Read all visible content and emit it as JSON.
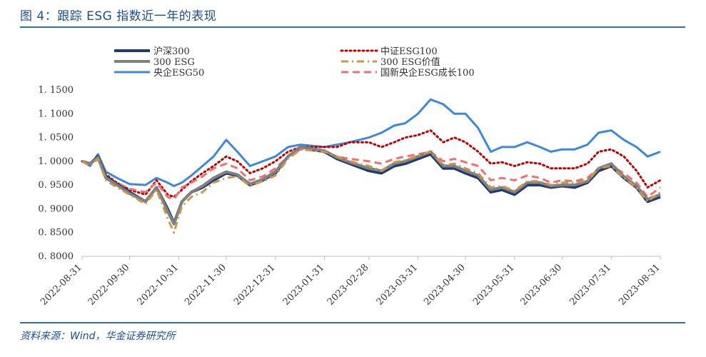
{
  "header": {
    "title": "图 4：跟踪 ESG 指数近一年的表现"
  },
  "footer": {
    "source": "资料来源：Wind，华金证券研究所"
  },
  "colors": {
    "hs300": "#1f3b73",
    "esg100": "#c00000",
    "esg300": "#808080",
    "esg300value": "#c9974a",
    "soe50": "#3d87dc",
    "soe_growth100": "#f07070"
  },
  "chart_data": {
    "type": "line",
    "title": "",
    "xlabel": "",
    "ylabel": "",
    "ylim": [
      0.8,
      1.15
    ],
    "yticks": [
      "1. 1500",
      "1. 1000",
      "1. 0500",
      "1. 0000",
      "0. 9500",
      "0. 9000",
      "0. 8500",
      "0. 8000"
    ],
    "ytick_values": [
      1.15,
      1.1,
      1.05,
      1.0,
      0.95,
      0.9,
      0.85,
      0.8
    ],
    "xticks": [
      "2022-08-31",
      "2022-09-30",
      "2022-10-31",
      "2022-11-30",
      "2022-12-31",
      "2023-01-31",
      "2023-02-28",
      "2023-03-31",
      "2023-04-30",
      "2023-05-31",
      "2023-06-30",
      "2023-07-31",
      "2023-08-31"
    ],
    "legend_position": "top",
    "grid": false,
    "x": [
      "2022-08-31",
      "2022-09-05",
      "2022-09-10",
      "2022-09-15",
      "2022-09-22",
      "2022-09-30",
      "2022-10-10",
      "2022-10-17",
      "2022-10-24",
      "2022-10-28",
      "2022-11-02",
      "2022-11-08",
      "2022-11-15",
      "2022-11-22",
      "2022-11-30",
      "2022-12-07",
      "2022-12-15",
      "2022-12-23",
      "2022-12-31",
      "2023-01-08",
      "2023-01-16",
      "2023-01-31",
      "2023-02-08",
      "2023-02-16",
      "2023-02-28",
      "2023-03-08",
      "2023-03-16",
      "2023-03-23",
      "2023-03-31",
      "2023-04-08",
      "2023-04-16",
      "2023-04-23",
      "2023-04-30",
      "2023-05-08",
      "2023-05-16",
      "2023-05-23",
      "2023-05-31",
      "2023-06-08",
      "2023-06-16",
      "2023-06-23",
      "2023-06-30",
      "2023-07-08",
      "2023-07-16",
      "2023-07-23",
      "2023-07-31",
      "2023-08-08",
      "2023-08-16",
      "2023-08-23",
      "2023-08-31"
    ],
    "series": [
      {
        "name": "沪深300",
        "key": "hs300",
        "style": "solid",
        "width": 4,
        "values": [
          1.0,
          0.995,
          1.01,
          0.968,
          0.952,
          0.935,
          0.915,
          0.945,
          0.9,
          0.87,
          0.915,
          0.935,
          0.945,
          0.96,
          0.975,
          0.97,
          0.95,
          0.96,
          0.975,
          1.01,
          1.03,
          1.02,
          1.005,
          0.995,
          0.98,
          0.975,
          0.99,
          0.995,
          1.005,
          1.015,
          0.985,
          0.985,
          0.975,
          0.965,
          0.935,
          0.94,
          0.93,
          0.95,
          0.95,
          0.945,
          0.948,
          0.945,
          0.955,
          0.98,
          0.99,
          0.965,
          0.945,
          0.915,
          0.925
        ]
      },
      {
        "name": "中证ESG100",
        "key": "esg100",
        "style": "dotted",
        "width": 3,
        "values": [
          1.0,
          0.995,
          1.012,
          0.972,
          0.955,
          0.94,
          0.93,
          0.96,
          0.93,
          0.925,
          0.94,
          0.958,
          0.975,
          0.99,
          1.01,
          1.0,
          0.975,
          0.985,
          1.0,
          1.02,
          1.03,
          1.03,
          1.03,
          1.04,
          1.04,
          1.03,
          1.04,
          1.05,
          1.055,
          1.065,
          1.04,
          1.05,
          1.04,
          1.02,
          0.995,
          0.998,
          0.99,
          0.998,
          0.995,
          0.985,
          0.985,
          0.985,
          0.995,
          1.02,
          1.025,
          1.01,
          0.98,
          0.945,
          0.96
        ]
      },
      {
        "name": "300 ESG",
        "key": "esg300",
        "style": "solid",
        "width": 4,
        "values": [
          1.0,
          0.995,
          1.008,
          0.965,
          0.95,
          0.932,
          0.915,
          0.945,
          0.895,
          0.868,
          0.915,
          0.935,
          0.948,
          0.965,
          0.978,
          0.972,
          0.952,
          0.962,
          0.978,
          1.01,
          1.03,
          1.022,
          1.008,
          0.998,
          0.985,
          0.98,
          0.995,
          1.0,
          1.01,
          1.02,
          0.99,
          0.99,
          0.98,
          0.97,
          0.94,
          0.945,
          0.935,
          0.955,
          0.955,
          0.948,
          0.95,
          0.95,
          0.958,
          0.985,
          0.995,
          0.968,
          0.948,
          0.92,
          0.93
        ]
      },
      {
        "name": "300 ESG价值",
        "key": "esg300value",
        "style": "dashdot",
        "width": 3,
        "values": [
          1.0,
          0.99,
          1.005,
          0.96,
          0.945,
          0.93,
          0.91,
          0.94,
          0.88,
          0.85,
          0.905,
          0.925,
          0.935,
          0.955,
          0.965,
          0.968,
          0.948,
          0.958,
          0.97,
          1.005,
          1.025,
          1.02,
          1.01,
          1.0,
          0.99,
          0.98,
          0.998,
          1.002,
          1.012,
          1.02,
          0.992,
          0.995,
          0.985,
          0.975,
          0.945,
          0.948,
          0.938,
          0.958,
          0.958,
          0.95,
          0.955,
          0.955,
          0.96,
          0.985,
          0.99,
          0.965,
          0.945,
          0.915,
          0.935
        ]
      },
      {
        "name": "央企ESG50",
        "key": "soe50",
        "style": "solid",
        "width": 3,
        "values": [
          1.0,
          0.99,
          1.015,
          0.978,
          0.965,
          0.952,
          0.95,
          0.965,
          0.955,
          0.948,
          0.955,
          0.97,
          0.99,
          1.01,
          1.045,
          1.02,
          0.99,
          1.0,
          1.01,
          1.03,
          1.035,
          1.03,
          1.035,
          1.04,
          1.05,
          1.06,
          1.075,
          1.08,
          1.1,
          1.13,
          1.12,
          1.1,
          1.1,
          1.07,
          1.02,
          1.03,
          1.03,
          1.04,
          1.03,
          1.02,
          1.025,
          1.025,
          1.035,
          1.06,
          1.065,
          1.045,
          1.03,
          1.01,
          1.02
        ]
      },
      {
        "name": "国新央企ESG成长100",
        "key": "soe_growth100",
        "style": "dashed",
        "width": 3,
        "values": [
          1.0,
          0.992,
          1.01,
          0.968,
          0.955,
          0.942,
          0.935,
          0.955,
          0.925,
          0.92,
          0.945,
          0.955,
          0.968,
          0.985,
          0.995,
          0.985,
          0.96,
          0.968,
          0.985,
          1.01,
          1.025,
          1.02,
          1.01,
          1.005,
          1.0,
          0.995,
          1.005,
          1.01,
          1.015,
          1.02,
          1.0,
          1.005,
          0.998,
          0.99,
          0.96,
          0.965,
          0.96,
          0.97,
          0.965,
          0.955,
          0.96,
          0.958,
          0.965,
          0.985,
          0.99,
          0.975,
          0.955,
          0.925,
          0.945
        ]
      }
    ]
  }
}
